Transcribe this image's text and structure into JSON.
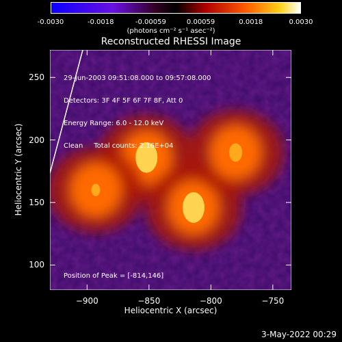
{
  "chart_data": {
    "type": "heatmap",
    "title": "Reconstructed RHESSI Image",
    "xlabel": "Heliocentric X (arcsec)",
    "ylabel": "Heliocentric Y (arcsec)",
    "xlim": [
      -930,
      -735
    ],
    "ylim": [
      80,
      272
    ],
    "xticks": [
      -900,
      -850,
      -800,
      -750
    ],
    "yticks": [
      100,
      150,
      200,
      250
    ],
    "colorbar": {
      "range": [
        -0.003,
        0.003
      ],
      "ticks": [
        "-0.0030",
        "-0.0018",
        "-0.00059",
        "0.00059",
        "0.0018",
        "0.0030"
      ],
      "units": "(photons cm⁻² s⁻¹ asec⁻²)"
    },
    "annotations": [
      "29-Jun-2003 09:51:08.000 to 09:57:08.000",
      "Detectors: 3F 4F 5F 6F 7F 8F, Att 0",
      "Energy Range: 6.0 - 12.0 keV",
      "Clean     Total counts: 2.16E+04"
    ],
    "peak_label": "Position of Peak = [-814,146]",
    "peak_position": [
      -814,
      146
    ],
    "sources": [
      {
        "x": -852,
        "y": 186,
        "value": 0.003
      },
      {
        "x": -814,
        "y": 146,
        "value": 0.003
      },
      {
        "x": -780,
        "y": 190,
        "value": 0.0018
      },
      {
        "x": -893,
        "y": 160,
        "value": 0.0012
      }
    ]
  },
  "timestamp": "3-May-2022 00:29",
  "colors": {
    "background": "#000000",
    "frame": "#ffffff"
  }
}
